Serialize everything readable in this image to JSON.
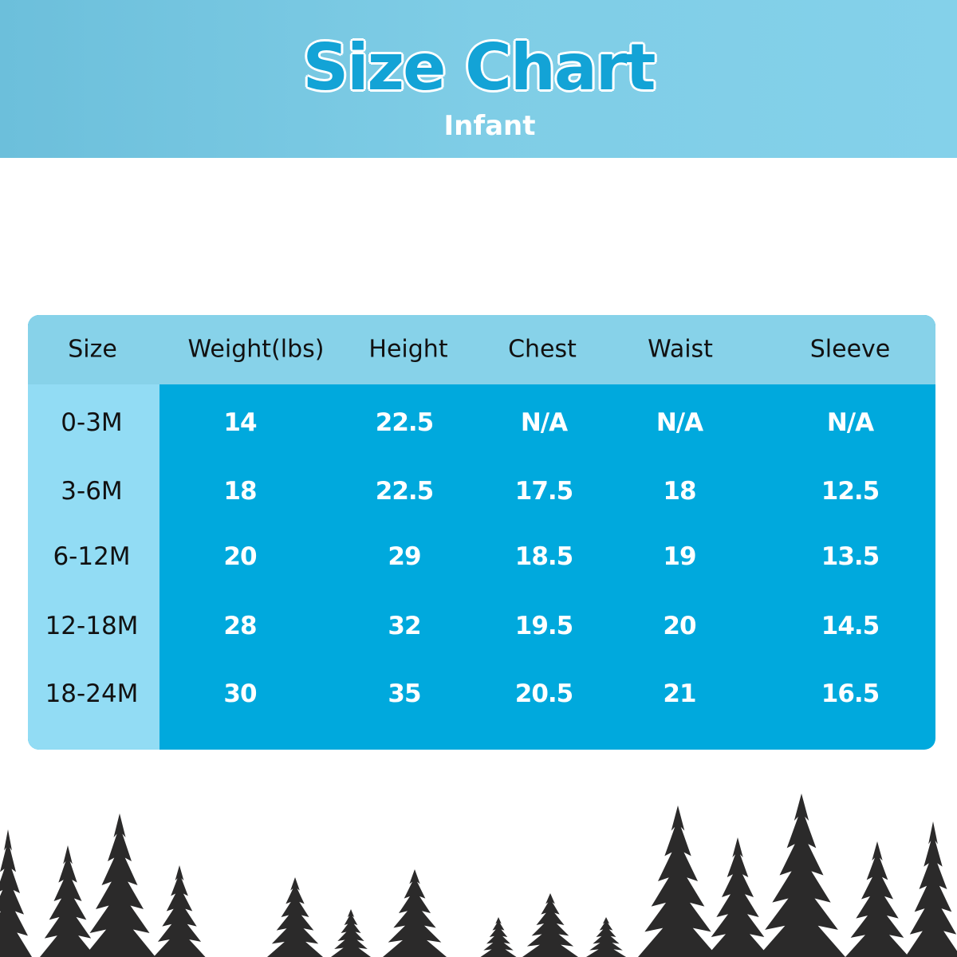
{
  "header": {
    "title": "Size Chart",
    "subtitle": "Infant"
  },
  "colors": {
    "banner": "#7fcde6",
    "title": "#13a3d6",
    "table_header": "#87d2e9",
    "size_column": "#92dcf4",
    "table_body": "#00a9dd",
    "trees": "#2b2a2a"
  },
  "table": {
    "columns": [
      "Size",
      "Weight(lbs)",
      "Height",
      "Chest",
      "Waist",
      "Sleeve"
    ],
    "rows": [
      [
        "0-3M",
        "14",
        "22.5",
        "N/A",
        "N/A",
        "N/A"
      ],
      [
        "3-6M",
        "18",
        "22.5",
        "17.5",
        "18",
        "12.5"
      ],
      [
        "6-12M",
        "20",
        "29",
        "18.5",
        "19",
        "13.5"
      ],
      [
        "12-18M",
        "28",
        "32",
        "19.5",
        "20",
        "14.5"
      ],
      [
        "18-24M",
        "30",
        "35",
        "20.5",
        "21",
        "16.5"
      ]
    ]
  },
  "decoration": {
    "footer_icon": "pine-tree-silhouettes"
  }
}
